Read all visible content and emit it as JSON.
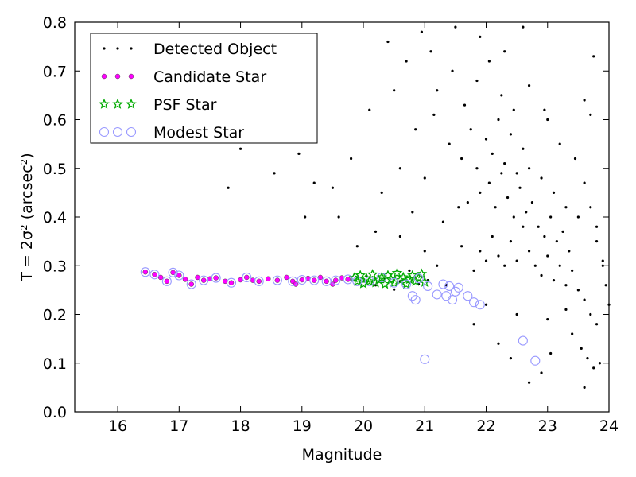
{
  "chart_data": {
    "type": "scatter",
    "xlabel": "Magnitude",
    "ylabel": "T = 2σ² (arcsec²)",
    "xlim": [
      15.3,
      24.0
    ],
    "ylim": [
      0.0,
      0.8
    ],
    "xticks": [
      "16",
      "17",
      "18",
      "19",
      "20",
      "21",
      "22",
      "23",
      "24"
    ],
    "yticks": [
      "0.0",
      "0.1",
      "0.2",
      "0.3",
      "0.4",
      "0.5",
      "0.6",
      "0.7",
      "0.8"
    ],
    "grid": false,
    "legend_position": "top-left",
    "series": [
      {
        "name": "Detected Object",
        "marker": "dot",
        "color": "#000000",
        "points": [
          [
            20.05,
            0.279
          ],
          [
            20.2,
            0.26
          ],
          [
            20.35,
            0.272
          ],
          [
            20.5,
            0.251
          ],
          [
            20.6,
            0.268
          ],
          [
            20.75,
            0.29
          ],
          [
            20.9,
            0.262
          ],
          [
            21.05,
            0.27
          ],
          [
            21.2,
            0.3
          ],
          [
            21.35,
            0.26
          ],
          [
            21.6,
            0.34
          ],
          [
            21.8,
            0.29
          ],
          [
            21.9,
            0.33
          ],
          [
            22.0,
            0.31
          ],
          [
            22.1,
            0.36
          ],
          [
            22.2,
            0.32
          ],
          [
            22.3,
            0.3
          ],
          [
            22.4,
            0.35
          ],
          [
            22.5,
            0.31
          ],
          [
            22.6,
            0.38
          ],
          [
            22.7,
            0.33
          ],
          [
            22.8,
            0.3
          ],
          [
            22.9,
            0.28
          ],
          [
            23.0,
            0.32
          ],
          [
            23.1,
            0.27
          ],
          [
            23.2,
            0.3
          ],
          [
            23.3,
            0.26
          ],
          [
            23.4,
            0.29
          ],
          [
            23.5,
            0.25
          ],
          [
            23.6,
            0.23
          ],
          [
            23.7,
            0.2
          ],
          [
            23.8,
            0.18
          ],
          [
            21.7,
            0.43
          ],
          [
            21.9,
            0.45
          ],
          [
            22.05,
            0.47
          ],
          [
            22.15,
            0.42
          ],
          [
            22.25,
            0.49
          ],
          [
            22.35,
            0.44
          ],
          [
            22.45,
            0.4
          ],
          [
            22.55,
            0.46
          ],
          [
            22.65,
            0.41
          ],
          [
            22.75,
            0.43
          ],
          [
            22.85,
            0.38
          ],
          [
            22.95,
            0.36
          ],
          [
            23.05,
            0.4
          ],
          [
            23.15,
            0.35
          ],
          [
            23.25,
            0.37
          ],
          [
            23.35,
            0.33
          ],
          [
            21.4,
            0.55
          ],
          [
            21.6,
            0.52
          ],
          [
            21.75,
            0.58
          ],
          [
            21.85,
            0.5
          ],
          [
            22.0,
            0.56
          ],
          [
            22.1,
            0.53
          ],
          [
            22.2,
            0.6
          ],
          [
            22.3,
            0.51
          ],
          [
            22.4,
            0.57
          ],
          [
            22.5,
            0.49
          ],
          [
            22.6,
            0.54
          ],
          [
            22.7,
            0.5
          ],
          [
            22.9,
            0.48
          ],
          [
            23.1,
            0.45
          ],
          [
            23.3,
            0.42
          ],
          [
            23.5,
            0.4
          ],
          [
            21.2,
            0.66
          ],
          [
            21.45,
            0.7
          ],
          [
            21.65,
            0.63
          ],
          [
            21.85,
            0.68
          ],
          [
            22.05,
            0.72
          ],
          [
            22.25,
            0.65
          ],
          [
            22.45,
            0.62
          ],
          [
            22.7,
            0.67
          ],
          [
            23.0,
            0.6
          ],
          [
            23.2,
            0.55
          ],
          [
            23.45,
            0.52
          ],
          [
            23.6,
            0.47
          ],
          [
            23.7,
            0.42
          ],
          [
            23.8,
            0.35
          ],
          [
            23.9,
            0.3
          ],
          [
            24.0,
            0.22
          ],
          [
            20.4,
            0.76
          ],
          [
            20.7,
            0.72
          ],
          [
            20.95,
            0.78
          ],
          [
            21.1,
            0.74
          ],
          [
            21.5,
            0.79
          ],
          [
            21.9,
            0.77
          ],
          [
            22.3,
            0.74
          ],
          [
            22.6,
            0.79
          ],
          [
            20.3,
            0.45
          ],
          [
            20.6,
            0.5
          ],
          [
            20.8,
            0.41
          ],
          [
            21.0,
            0.48
          ],
          [
            20.1,
            0.62
          ],
          [
            20.5,
            0.66
          ],
          [
            20.85,
            0.58
          ],
          [
            21.15,
            0.61
          ],
          [
            19.9,
            0.34
          ],
          [
            20.2,
            0.37
          ],
          [
            20.6,
            0.36
          ],
          [
            21.0,
            0.33
          ],
          [
            21.3,
            0.39
          ],
          [
            21.55,
            0.42
          ],
          [
            19.6,
            0.4
          ],
          [
            19.8,
            0.52
          ],
          [
            23.4,
            0.16
          ],
          [
            23.55,
            0.13
          ],
          [
            23.65,
            0.11
          ],
          [
            23.75,
            0.09
          ],
          [
            23.6,
            0.05
          ],
          [
            23.85,
            0.1
          ],
          [
            22.9,
            0.08
          ],
          [
            23.05,
            0.12
          ],
          [
            22.4,
            0.11
          ],
          [
            22.2,
            0.14
          ],
          [
            22.7,
            0.06
          ],
          [
            21.8,
            0.18
          ],
          [
            22.0,
            0.22
          ],
          [
            22.5,
            0.2
          ],
          [
            23.0,
            0.19
          ],
          [
            23.3,
            0.21
          ],
          [
            18.55,
            0.49
          ],
          [
            17.8,
            0.46
          ],
          [
            19.05,
            0.4
          ],
          [
            19.2,
            0.47
          ],
          [
            18.95,
            0.53
          ],
          [
            18.0,
            0.54
          ],
          [
            18.8,
            0.57
          ],
          [
            19.5,
            0.46
          ],
          [
            24.05,
            0.16
          ],
          [
            23.95,
            0.26
          ],
          [
            23.9,
            0.31
          ],
          [
            23.8,
            0.38
          ],
          [
            23.7,
            0.61
          ],
          [
            23.75,
            0.73
          ],
          [
            23.6,
            0.64
          ],
          [
            22.95,
            0.62
          ]
        ]
      },
      {
        "name": "Candidate Star",
        "marker": "circle",
        "color": "#ff00ff",
        "points": [
          [
            16.45,
            0.287
          ],
          [
            16.6,
            0.282
          ],
          [
            16.7,
            0.276
          ],
          [
            16.8,
            0.268
          ],
          [
            16.9,
            0.286
          ],
          [
            17.0,
            0.28
          ],
          [
            17.1,
            0.272
          ],
          [
            17.2,
            0.262
          ],
          [
            17.3,
            0.276
          ],
          [
            17.4,
            0.27
          ],
          [
            17.5,
            0.273
          ],
          [
            17.6,
            0.275
          ],
          [
            17.75,
            0.268
          ],
          [
            17.85,
            0.265
          ],
          [
            18.0,
            0.271
          ],
          [
            18.1,
            0.276
          ],
          [
            18.2,
            0.27
          ],
          [
            18.3,
            0.268
          ],
          [
            18.45,
            0.273
          ],
          [
            18.6,
            0.27
          ],
          [
            18.75,
            0.276
          ],
          [
            18.85,
            0.268
          ],
          [
            18.9,
            0.262
          ],
          [
            19.0,
            0.271
          ],
          [
            19.1,
            0.274
          ],
          [
            19.2,
            0.27
          ],
          [
            19.3,
            0.276
          ],
          [
            19.4,
            0.268
          ],
          [
            19.5,
            0.262
          ],
          [
            19.55,
            0.27
          ],
          [
            19.65,
            0.275
          ],
          [
            19.75,
            0.272
          ]
        ]
      },
      {
        "name": "PSF Star",
        "marker": "star",
        "color": "#00aa00",
        "points": [
          [
            19.85,
            0.275
          ],
          [
            19.9,
            0.268
          ],
          [
            19.95,
            0.28
          ],
          [
            20.0,
            0.263
          ],
          [
            20.05,
            0.274
          ],
          [
            20.1,
            0.268
          ],
          [
            20.15,
            0.282
          ],
          [
            20.2,
            0.265
          ],
          [
            20.25,
            0.271
          ],
          [
            20.3,
            0.276
          ],
          [
            20.35,
            0.262
          ],
          [
            20.4,
            0.28
          ],
          [
            20.45,
            0.272
          ],
          [
            20.5,
            0.265
          ],
          [
            20.55,
            0.285
          ],
          [
            20.6,
            0.27
          ],
          [
            20.65,
            0.276
          ],
          [
            20.7,
            0.262
          ],
          [
            20.75,
            0.272
          ],
          [
            20.8,
            0.28
          ],
          [
            20.85,
            0.268
          ],
          [
            20.9,
            0.274
          ],
          [
            20.95,
            0.283
          ],
          [
            21.0,
            0.266
          ]
        ]
      },
      {
        "name": "Modest Star",
        "marker": "open-circle",
        "color": "#9999ff",
        "points": [
          [
            16.45,
            0.287
          ],
          [
            16.6,
            0.282
          ],
          [
            16.8,
            0.268
          ],
          [
            16.9,
            0.286
          ],
          [
            17.0,
            0.28
          ],
          [
            17.2,
            0.262
          ],
          [
            17.4,
            0.27
          ],
          [
            17.6,
            0.275
          ],
          [
            17.85,
            0.265
          ],
          [
            18.1,
            0.276
          ],
          [
            18.3,
            0.268
          ],
          [
            18.6,
            0.27
          ],
          [
            18.85,
            0.268
          ],
          [
            19.0,
            0.271
          ],
          [
            19.2,
            0.27
          ],
          [
            19.4,
            0.268
          ],
          [
            19.55,
            0.27
          ],
          [
            19.75,
            0.272
          ],
          [
            19.9,
            0.268
          ],
          [
            20.1,
            0.268
          ],
          [
            20.3,
            0.276
          ],
          [
            20.5,
            0.265
          ],
          [
            20.7,
            0.262
          ],
          [
            20.9,
            0.274
          ],
          [
            21.05,
            0.258
          ],
          [
            21.2,
            0.241
          ],
          [
            21.35,
            0.238
          ],
          [
            21.4,
            0.258
          ],
          [
            21.45,
            0.23
          ],
          [
            21.5,
            0.247
          ],
          [
            21.7,
            0.238
          ],
          [
            21.8,
            0.225
          ],
          [
            21.9,
            0.22
          ],
          [
            20.8,
            0.238
          ],
          [
            20.85,
            0.23
          ],
          [
            21.0,
            0.108
          ],
          [
            22.6,
            0.146
          ],
          [
            22.8,
            0.105
          ],
          [
            21.55,
            0.255
          ],
          [
            21.3,
            0.262
          ]
        ]
      }
    ]
  }
}
